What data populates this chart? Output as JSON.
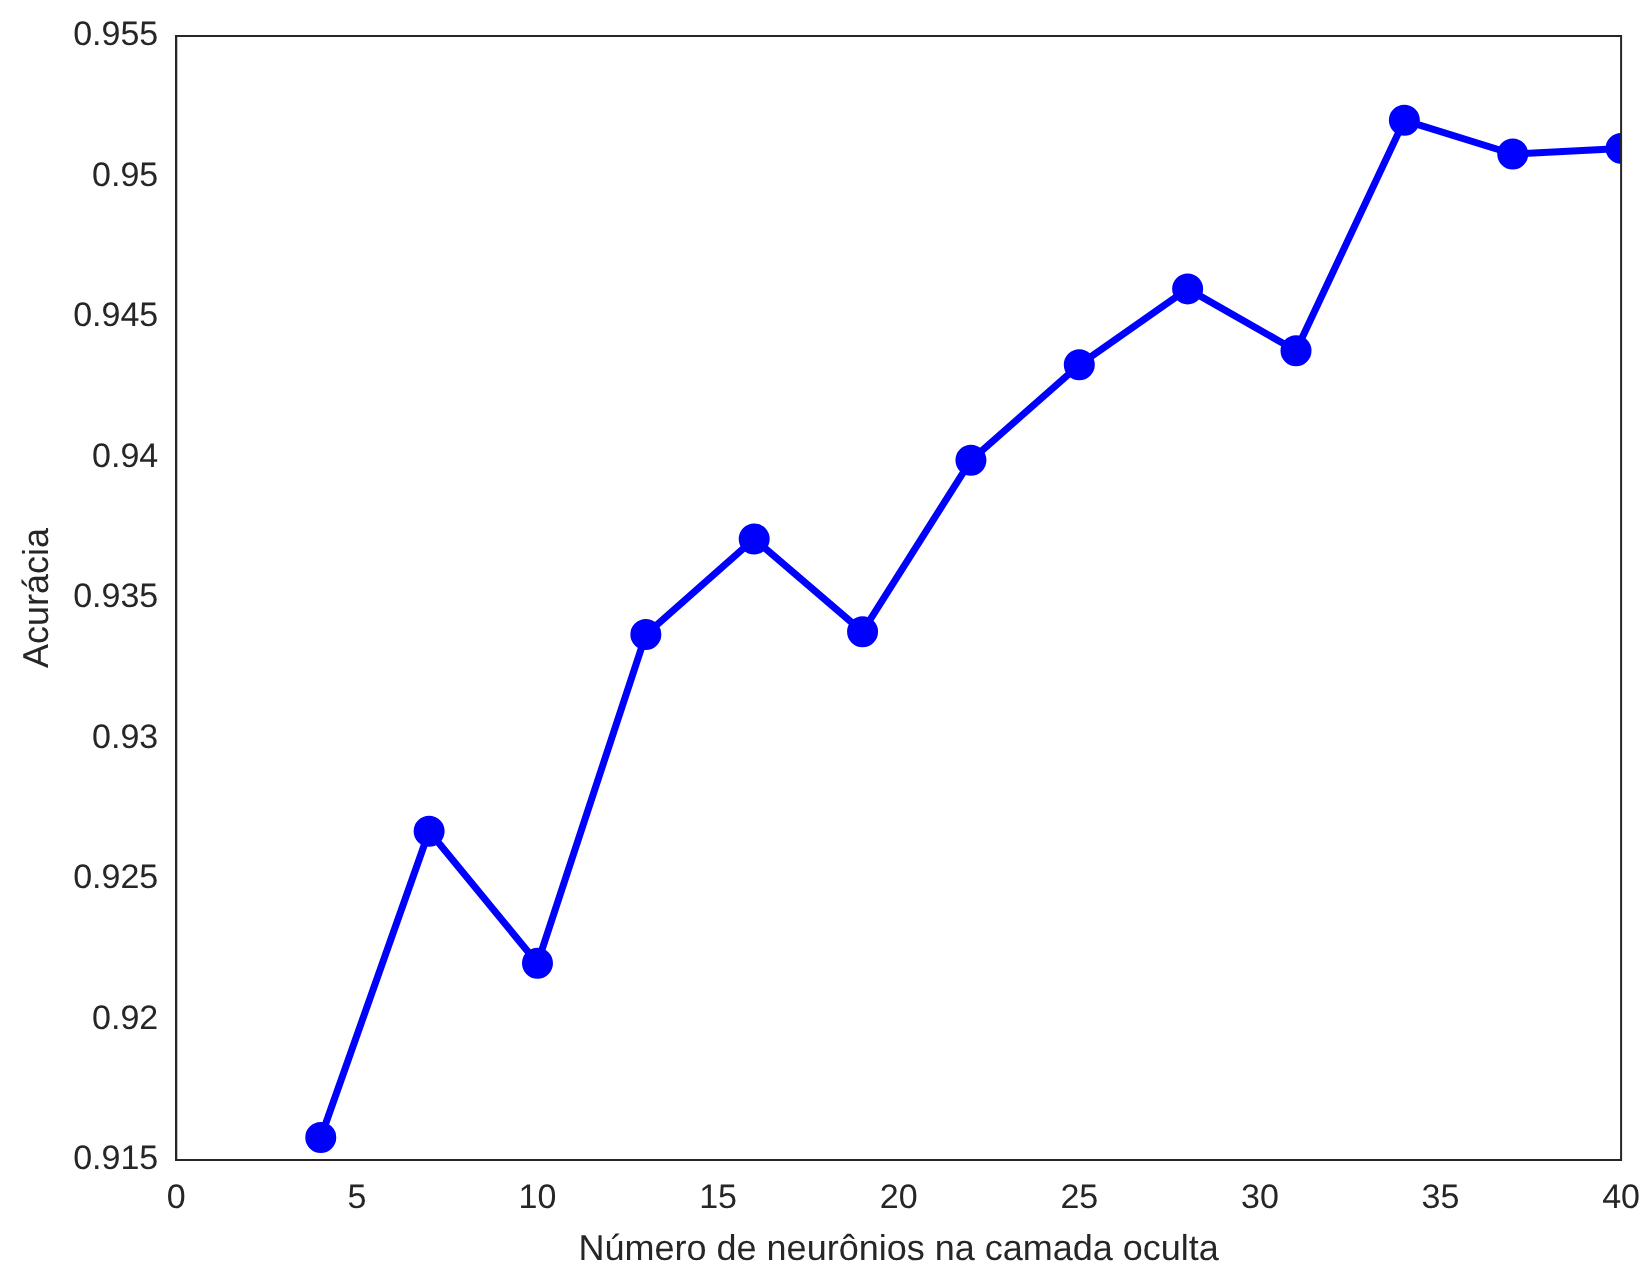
{
  "chart_data": {
    "type": "line",
    "xlabel": "Número de neurônios na camada oculta",
    "ylabel": "Acurácia",
    "x": [
      4,
      7,
      10,
      13,
      16,
      19,
      22,
      25,
      28,
      31,
      34,
      37,
      40
    ],
    "series": [
      {
        "color": "#0000ff",
        "values": [
          0.9158,
          0.9267,
          0.922,
          0.9337,
          0.9371,
          0.9338,
          0.9399,
          0.9433,
          0.946,
          0.9438,
          0.952,
          0.9508,
          0.951
        ]
      }
    ],
    "xlim": [
      0,
      40
    ],
    "xticks": [
      0,
      5,
      10,
      15,
      20,
      25,
      30,
      35,
      40
    ],
    "ylim": [
      0.915,
      0.955
    ],
    "yticks": [
      0.915,
      0.92,
      0.925,
      0.93,
      0.935,
      0.94,
      0.945,
      0.95,
      0.955
    ],
    "grid": false,
    "legend": false,
    "marker": "circle",
    "line_style": "solid"
  }
}
